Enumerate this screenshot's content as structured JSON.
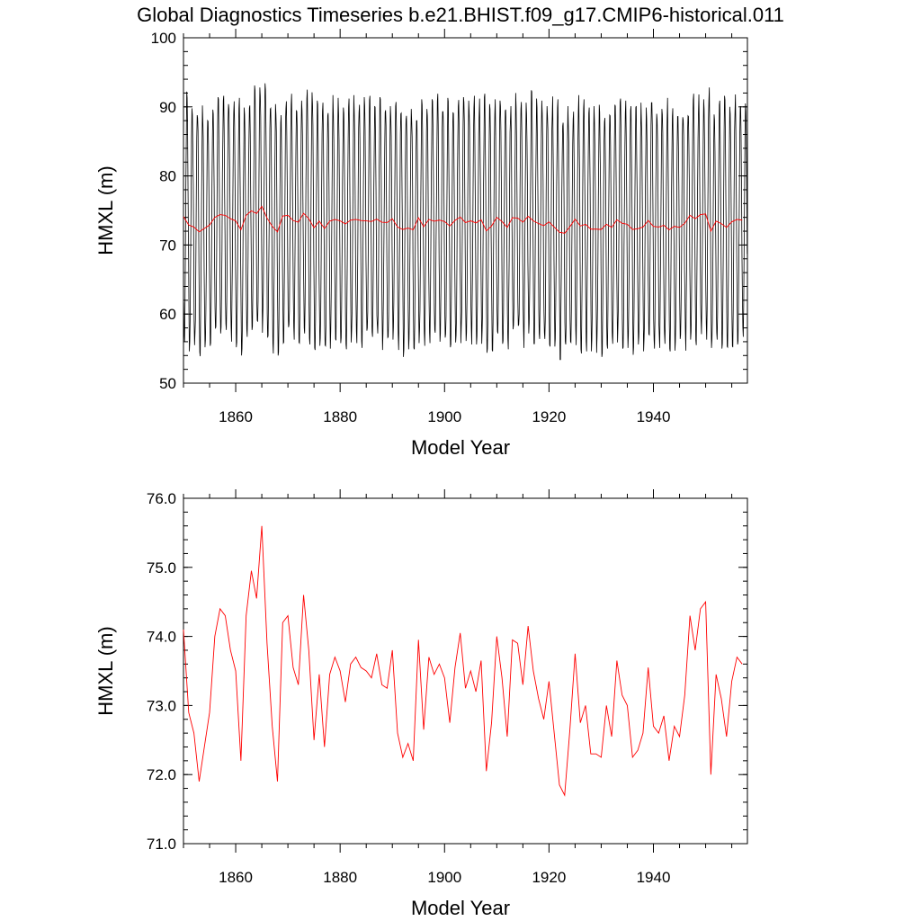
{
  "figure_title": "Global Diagnostics Timeseries b.e21.BHIST.f09_g17.CMIP6-historical.011",
  "colors": {
    "monthly_line": "#000000",
    "annual_line": "#ff0000",
    "axes": "#000000",
    "background": "#ffffff"
  },
  "chart_data": [
    {
      "type": "line",
      "title": "Global Diagnostics Timeseries b.e21.BHIST.f09_g17.CMIP6-historical.011",
      "xlabel": "Model Year",
      "ylabel": "HMXL (m)",
      "xlim": [
        1850,
        1958
      ],
      "ylim": [
        50,
        100
      ],
      "x_ticks": [
        1860,
        1880,
        1900,
        1920,
        1940
      ],
      "x_tick_labels": [
        "1860",
        "1880",
        "1900",
        "1920",
        "1940"
      ],
      "y_ticks": [
        50,
        60,
        70,
        80,
        90,
        100
      ],
      "y_tick_labels": [
        "50",
        "60",
        "70",
        "80",
        "90",
        "100"
      ],
      "grid": false,
      "series": [
        {
          "style": "monthly",
          "color": "#000000",
          "x_start": 1850.04,
          "x_step": 0.083333,
          "annual_cycle_range": [
            57,
            92
          ],
          "values": []
        },
        {
          "style": "annual",
          "color": "#ff0000",
          "x": [
            1850,
            1851,
            1852,
            1853,
            1854,
            1855,
            1856,
            1857,
            1858,
            1859,
            1860,
            1861,
            1862,
            1863,
            1864,
            1865,
            1866,
            1867,
            1868,
            1869,
            1870,
            1871,
            1872,
            1873,
            1874,
            1875,
            1876,
            1877,
            1878,
            1879,
            1880,
            1881,
            1882,
            1883,
            1884,
            1885,
            1886,
            1887,
            1888,
            1889,
            1890,
            1891,
            1892,
            1893,
            1894,
            1895,
            1896,
            1897,
            1898,
            1899,
            1900,
            1901,
            1902,
            1903,
            1904,
            1905,
            1906,
            1907,
            1908,
            1909,
            1910,
            1911,
            1912,
            1913,
            1914,
            1915,
            1916,
            1917,
            1918,
            1919,
            1920,
            1921,
            1922,
            1923,
            1924,
            1925,
            1926,
            1927,
            1928,
            1929,
            1930,
            1931,
            1932,
            1933,
            1934,
            1935,
            1936,
            1937,
            1938,
            1939,
            1940,
            1941,
            1942,
            1943,
            1944,
            1945,
            1946,
            1947,
            1948,
            1949,
            1950,
            1951,
            1952,
            1953,
            1954,
            1955,
            1956,
            1957
          ],
          "values": [
            74.1,
            72.9,
            72.6,
            71.9,
            72.4,
            72.9,
            74.0,
            74.4,
            74.3,
            73.8,
            73.5,
            72.2,
            74.3,
            74.95,
            74.55,
            75.6,
            73.9,
            72.7,
            71.9,
            74.2,
            74.3,
            73.55,
            73.3,
            74.6,
            73.8,
            72.5,
            73.45,
            72.4,
            73.45,
            73.7,
            73.5,
            73.05,
            73.6,
            73.7,
            73.55,
            73.5,
            73.4,
            73.75,
            73.3,
            73.25,
            73.8,
            72.6,
            72.25,
            72.45,
            72.2,
            73.95,
            72.65,
            73.7,
            73.45,
            73.6,
            73.4,
            72.75,
            73.55,
            74.05,
            73.25,
            73.5,
            73.2,
            73.65,
            72.05,
            72.75,
            74.0,
            73.4,
            72.55,
            73.95,
            73.9,
            73.3,
            74.15,
            73.5,
            73.1,
            72.8,
            73.35,
            72.6,
            71.85,
            71.7,
            72.65,
            73.75,
            72.75,
            73.0,
            72.3,
            72.3,
            72.25,
            73.0,
            72.55,
            73.65,
            73.15,
            73.0,
            72.25,
            72.35,
            72.6,
            73.55,
            72.7,
            72.6,
            72.85,
            72.2,
            72.7,
            72.55,
            73.15,
            74.3,
            73.8,
            74.4,
            74.5,
            72.0,
            73.45,
            73.1,
            72.55,
            73.35,
            73.7,
            73.6
          ]
        }
      ]
    },
    {
      "type": "line",
      "title": "",
      "xlabel": "Model Year",
      "ylabel": "HMXL (m)",
      "xlim": [
        1850,
        1958
      ],
      "ylim": [
        71,
        76
      ],
      "x_ticks": [
        1860,
        1880,
        1900,
        1920,
        1940
      ],
      "x_tick_labels": [
        "1860",
        "1880",
        "1900",
        "1920",
        "1940"
      ],
      "y_ticks": [
        71,
        72,
        73,
        74,
        75,
        76
      ],
      "y_tick_labels": [
        "71.0",
        "72.0",
        "73.0",
        "74.0",
        "75.0",
        "76.0"
      ],
      "grid": false,
      "series": [
        {
          "style": "annual",
          "color": "#ff0000",
          "x": [
            1850,
            1851,
            1852,
            1853,
            1854,
            1855,
            1856,
            1857,
            1858,
            1859,
            1860,
            1861,
            1862,
            1863,
            1864,
            1865,
            1866,
            1867,
            1868,
            1869,
            1870,
            1871,
            1872,
            1873,
            1874,
            1875,
            1876,
            1877,
            1878,
            1879,
            1880,
            1881,
            1882,
            1883,
            1884,
            1885,
            1886,
            1887,
            1888,
            1889,
            1890,
            1891,
            1892,
            1893,
            1894,
            1895,
            1896,
            1897,
            1898,
            1899,
            1900,
            1901,
            1902,
            1903,
            1904,
            1905,
            1906,
            1907,
            1908,
            1909,
            1910,
            1911,
            1912,
            1913,
            1914,
            1915,
            1916,
            1917,
            1918,
            1919,
            1920,
            1921,
            1922,
            1923,
            1924,
            1925,
            1926,
            1927,
            1928,
            1929,
            1930,
            1931,
            1932,
            1933,
            1934,
            1935,
            1936,
            1937,
            1938,
            1939,
            1940,
            1941,
            1942,
            1943,
            1944,
            1945,
            1946,
            1947,
            1948,
            1949,
            1950,
            1951,
            1952,
            1953,
            1954,
            1955,
            1956,
            1957
          ],
          "values": [
            74.1,
            72.9,
            72.6,
            71.9,
            72.4,
            72.9,
            74.0,
            74.4,
            74.3,
            73.8,
            73.5,
            72.2,
            74.3,
            74.95,
            74.55,
            75.6,
            73.9,
            72.7,
            71.9,
            74.2,
            74.3,
            73.55,
            73.3,
            74.6,
            73.8,
            72.5,
            73.45,
            72.4,
            73.45,
            73.7,
            73.5,
            73.05,
            73.6,
            73.7,
            73.55,
            73.5,
            73.4,
            73.75,
            73.3,
            73.25,
            73.8,
            72.6,
            72.25,
            72.45,
            72.2,
            73.95,
            72.65,
            73.7,
            73.45,
            73.6,
            73.4,
            72.75,
            73.55,
            74.05,
            73.25,
            73.5,
            73.2,
            73.65,
            72.05,
            72.75,
            74.0,
            73.4,
            72.55,
            73.95,
            73.9,
            73.3,
            74.15,
            73.5,
            73.1,
            72.8,
            73.35,
            72.6,
            71.85,
            71.7,
            72.65,
            73.75,
            72.75,
            73.0,
            72.3,
            72.3,
            72.25,
            73.0,
            72.55,
            73.65,
            73.15,
            73.0,
            72.25,
            72.35,
            72.6,
            73.55,
            72.7,
            72.6,
            72.85,
            72.2,
            72.7,
            72.55,
            73.15,
            74.3,
            73.8,
            74.4,
            74.5,
            72.0,
            73.45,
            73.1,
            72.55,
            73.35,
            73.7,
            73.6
          ]
        }
      ]
    }
  ]
}
